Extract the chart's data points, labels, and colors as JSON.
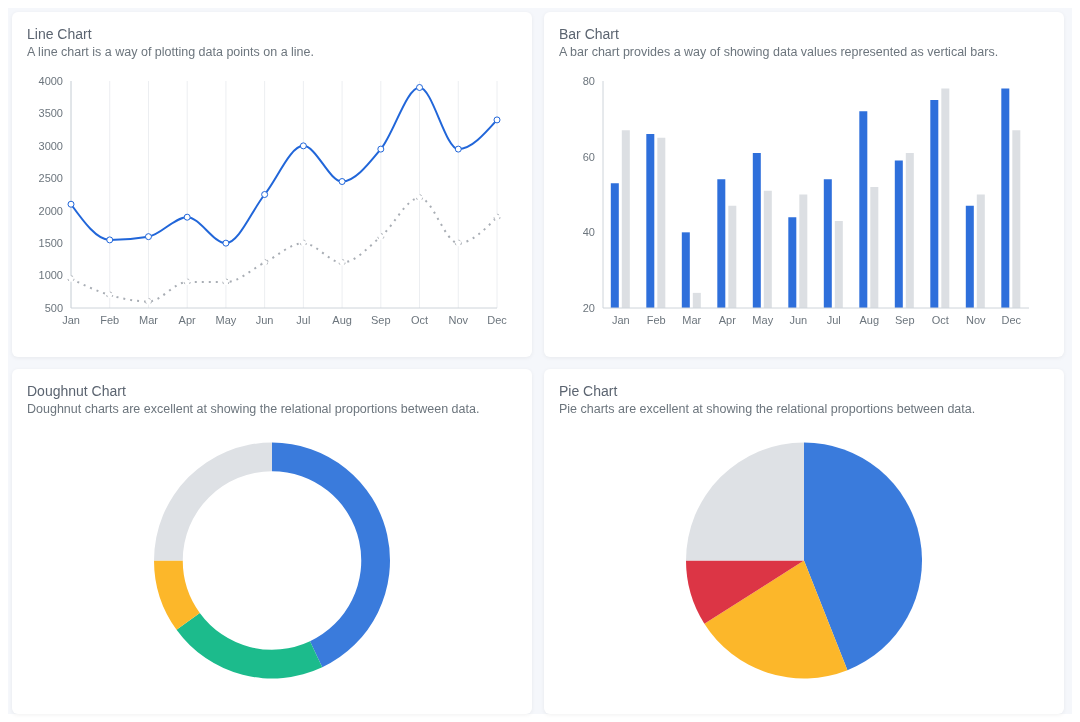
{
  "chart_data": [
    {
      "type": "line",
      "title": "Line Chart",
      "subtitle": "A line chart is a way of plotting data points on a line.",
      "categories": [
        "Jan",
        "Feb",
        "Mar",
        "Apr",
        "May",
        "Jun",
        "Jul",
        "Aug",
        "Sep",
        "Oct",
        "Nov",
        "Dec"
      ],
      "series": [
        {
          "color": "#2166d9",
          "line_style": "solid",
          "values": [
            2100,
            1550,
            1600,
            1900,
            1500,
            2250,
            3000,
            2450,
            2950,
            3900,
            2950,
            3400
          ]
        },
        {
          "color": "#a8adb4",
          "line_style": "dotted",
          "values": [
            950,
            700,
            600,
            900,
            900,
            1200,
            1500,
            1200,
            1600,
            2200,
            1500,
            1900
          ]
        }
      ],
      "ylim": [
        500,
        4000
      ],
      "yticks": [
        500,
        1000,
        1500,
        2000,
        2500,
        3000,
        3500,
        4000
      ],
      "grid": "x",
      "marker": "circle"
    },
    {
      "type": "bar",
      "title": "Bar Chart",
      "subtitle": "A bar chart provides a way of showing data values represented as vertical bars.",
      "categories": [
        "Jan",
        "Feb",
        "Mar",
        "Apr",
        "May",
        "Jun",
        "Jul",
        "Aug",
        "Sep",
        "Oct",
        "Nov",
        "Dec"
      ],
      "series": [
        {
          "color": "#2e6fdb",
          "values": [
            53,
            66,
            40,
            54,
            61,
            44,
            54,
            72,
            59,
            75,
            47,
            78
          ]
        },
        {
          "color": "#dcdfe3",
          "values": [
            67,
            65,
            24,
            47,
            51,
            50,
            43,
            52,
            61,
            78,
            50,
            67
          ]
        }
      ],
      "ylim": [
        20,
        80
      ],
      "yticks": [
        20,
        40,
        60,
        80
      ]
    },
    {
      "type": "donut",
      "title": "Doughnut Chart",
      "subtitle": "Doughnut charts are excellent at showing the relational proportions between data.",
      "categories": [
        null,
        null,
        null,
        null
      ],
      "values": [
        43,
        22,
        10,
        25
      ],
      "colors": [
        "#3a7bdc",
        "#1cbb8c",
        "#fcb72a",
        "#dee1e5"
      ]
    },
    {
      "type": "pie",
      "title": "Pie Chart",
      "subtitle": "Pie charts are excellent at showing the relational proportions between data.",
      "categories": [
        null,
        null,
        null,
        null
      ],
      "values": [
        44,
        22,
        9,
        25
      ],
      "colors": [
        "#3a7bdc",
        "#fcb72a",
        "#dc3545",
        "#dee1e5"
      ]
    }
  ]
}
